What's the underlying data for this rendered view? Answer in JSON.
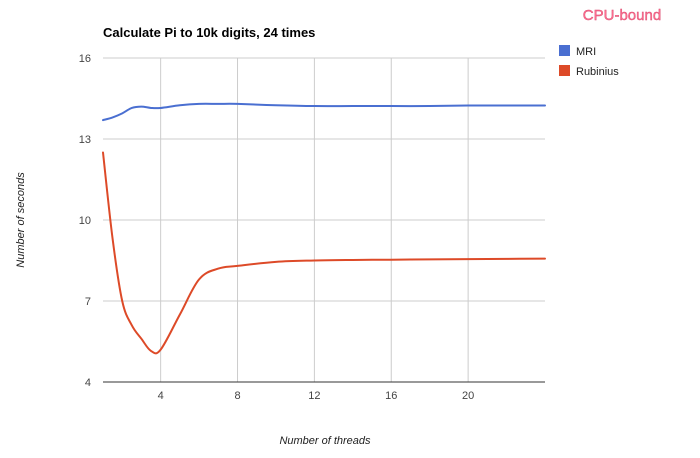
{
  "chart_data": {
    "type": "line",
    "title": "Calculate Pi to 10k digits, 24 times",
    "tag": "CPU-bound",
    "xlabel": "Number of threads",
    "ylabel": "Number of seconds",
    "x": [
      1,
      1.5,
      2,
      2.5,
      3,
      3.5,
      4,
      5,
      6,
      7,
      8,
      10,
      12,
      14,
      16,
      18,
      20,
      22,
      24
    ],
    "xticks": [
      4,
      8,
      12,
      16,
      20
    ],
    "xlim": [
      1,
      24
    ],
    "yticks": [
      4,
      7,
      10,
      13,
      16
    ],
    "ylim": [
      4,
      16
    ],
    "grid": true,
    "legend_position": "right",
    "series": [
      {
        "name": "MRI",
        "color": "#4a6fd1",
        "values": [
          13.7,
          13.8,
          13.95,
          14.15,
          14.2,
          14.15,
          14.15,
          14.25,
          14.3,
          14.3,
          14.3,
          14.25,
          14.22,
          14.22,
          14.22,
          14.22,
          14.24,
          14.24,
          14.24
        ]
      },
      {
        "name": "Rubinius",
        "color": "#dd4a28",
        "values": [
          12.5,
          9.3,
          7.0,
          6.1,
          5.6,
          5.15,
          5.2,
          6.5,
          7.8,
          8.2,
          8.3,
          8.45,
          8.5,
          8.52,
          8.53,
          8.54,
          8.55,
          8.56,
          8.57
        ]
      }
    ]
  }
}
